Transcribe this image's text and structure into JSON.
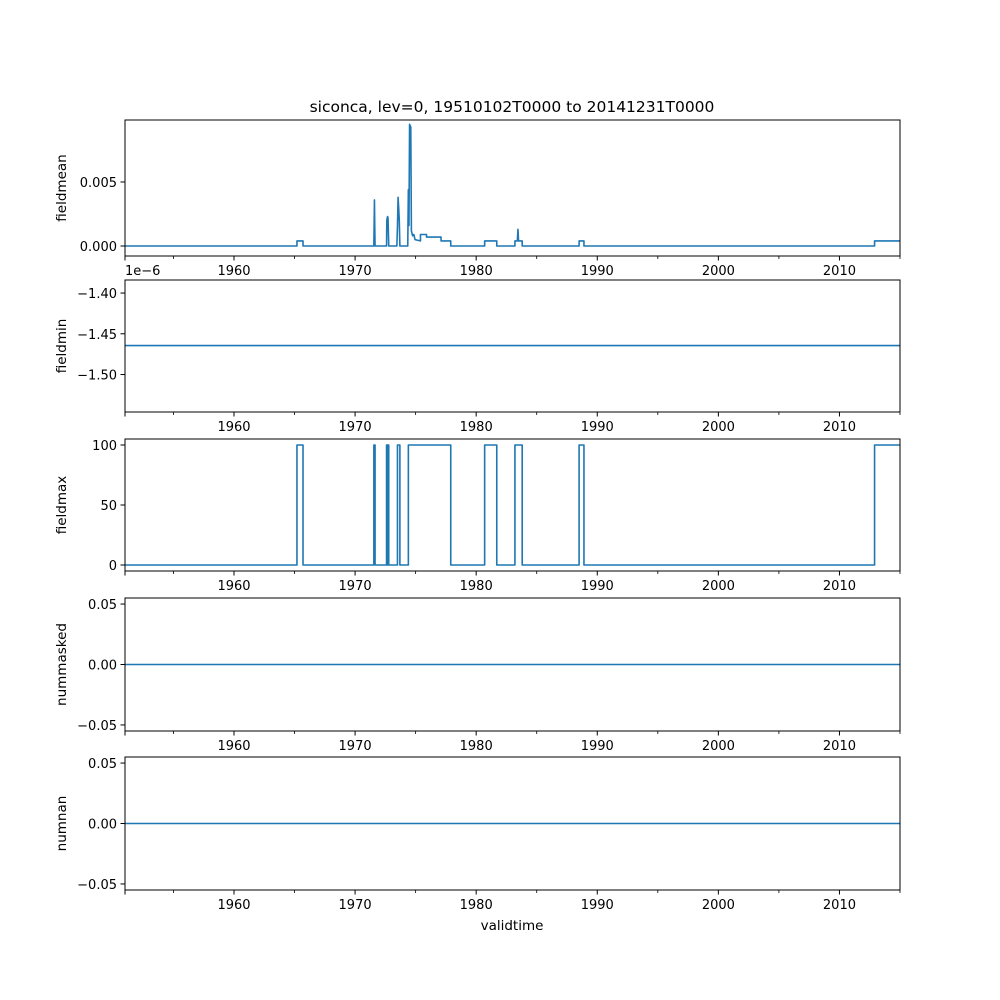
{
  "chart_data": {
    "type": "line",
    "title": "siconca, lev=0, 19510102T0000 to 20141231T0000",
    "xlabel": "validtime",
    "xlim": [
      1951.0,
      2015.0
    ],
    "x_major_ticks": [
      1960,
      1970,
      1980,
      1990,
      2000,
      2010
    ],
    "x_tick_labels": [
      "1960",
      "1970",
      "1980",
      "1990",
      "2000",
      "2010"
    ],
    "x_minor_ticks": [
      1955,
      1965,
      1975,
      1985,
      1995,
      2005,
      2015
    ],
    "line_color": "#1f77b4",
    "panels": [
      {
        "ylabel": "fieldmean",
        "ylim": [
          -0.00078,
          0.00984
        ],
        "yticks": [
          0.0,
          0.005
        ],
        "ytick_labels": [
          "0.000",
          "0.005"
        ],
        "offset_label": "",
        "points": [
          [
            1951,
            0
          ],
          [
            1965.2,
            0
          ],
          [
            1965.2,
            0.0004
          ],
          [
            1965.7,
            0.0004
          ],
          [
            1965.7,
            0
          ],
          [
            1971.55,
            0
          ],
          [
            1971.6,
            0.0036
          ],
          [
            1971.62,
            0.0018
          ],
          [
            1971.65,
            0
          ],
          [
            1972.6,
            0
          ],
          [
            1972.62,
            0.002
          ],
          [
            1972.68,
            0.0023
          ],
          [
            1972.72,
            0.0022
          ],
          [
            1972.78,
            0
          ],
          [
            1973.45,
            0
          ],
          [
            1973.5,
            0.0015
          ],
          [
            1973.55,
            0.0038
          ],
          [
            1973.6,
            0.003
          ],
          [
            1973.65,
            0.002
          ],
          [
            1973.7,
            0
          ],
          [
            1974.35,
            0
          ],
          [
            1974.4,
            0.0044
          ],
          [
            1974.45,
            0.0016
          ],
          [
            1974.5,
            0.0095
          ],
          [
            1974.6,
            0.0093
          ],
          [
            1974.65,
            0.0012
          ],
          [
            1974.75,
            0.0008
          ],
          [
            1974.85,
            0.0009
          ],
          [
            1974.95,
            0.0005
          ],
          [
            1975.4,
            0.0004
          ],
          [
            1975.4,
            0.0009
          ],
          [
            1975.9,
            0.0009
          ],
          [
            1975.9,
            0.0007
          ],
          [
            1977.1,
            0.0007
          ],
          [
            1977.1,
            0.0004
          ],
          [
            1977.9,
            0.0004
          ],
          [
            1977.9,
            0
          ],
          [
            1980.7,
            0
          ],
          [
            1980.7,
            0.0004
          ],
          [
            1981.7,
            0.0004
          ],
          [
            1981.7,
            0
          ],
          [
            1983.2,
            0
          ],
          [
            1983.2,
            0.0004
          ],
          [
            1983.4,
            0.0004
          ],
          [
            1983.45,
            0.0013
          ],
          [
            1983.5,
            0.0004
          ],
          [
            1983.8,
            0.0004
          ],
          [
            1983.8,
            0
          ],
          [
            1988.5,
            0
          ],
          [
            1988.5,
            0.0004
          ],
          [
            1988.9,
            0.0004
          ],
          [
            1988.9,
            0
          ],
          [
            2012.9,
            0
          ],
          [
            2012.9,
            0.0004
          ],
          [
            2015,
            0.0004
          ]
        ]
      },
      {
        "ylabel": "fieldmin",
        "ylim": [
          -1.546,
          -1.384
        ],
        "yticks": [
          -1.4,
          -1.45,
          -1.5
        ],
        "ytick_labels": [
          "−1.40",
          "−1.45",
          "−1.50"
        ],
        "offset_label": "1e−6",
        "points": [
          [
            1951,
            -1.4645
          ],
          [
            2015,
            -1.4645
          ]
        ]
      },
      {
        "ylabel": "fieldmax",
        "ylim": [
          -5,
          105
        ],
        "yticks": [
          0,
          50,
          100
        ],
        "ytick_labels": [
          "0",
          "50",
          "100"
        ],
        "offset_label": "",
        "points": [
          [
            1951,
            0
          ],
          [
            1965.2,
            0
          ],
          [
            1965.2,
            100
          ],
          [
            1965.7,
            100
          ],
          [
            1965.7,
            0
          ],
          [
            1971.55,
            0
          ],
          [
            1971.55,
            100
          ],
          [
            1971.65,
            100
          ],
          [
            1971.65,
            0
          ],
          [
            1972.6,
            0
          ],
          [
            1972.6,
            100
          ],
          [
            1972.65,
            100
          ],
          [
            1972.65,
            0
          ],
          [
            1972.7,
            0
          ],
          [
            1972.7,
            100
          ],
          [
            1972.78,
            100
          ],
          [
            1972.78,
            0
          ],
          [
            1973.5,
            0
          ],
          [
            1973.5,
            100
          ],
          [
            1973.7,
            100
          ],
          [
            1973.7,
            0
          ],
          [
            1974.4,
            0
          ],
          [
            1974.4,
            100
          ],
          [
            1977.9,
            100
          ],
          [
            1977.9,
            0
          ],
          [
            1980.7,
            0
          ],
          [
            1980.7,
            100
          ],
          [
            1981.7,
            100
          ],
          [
            1981.7,
            0
          ],
          [
            1983.2,
            0
          ],
          [
            1983.2,
            100
          ],
          [
            1983.8,
            100
          ],
          [
            1983.8,
            0
          ],
          [
            1988.5,
            0
          ],
          [
            1988.5,
            100
          ],
          [
            1988.9,
            100
          ],
          [
            1988.9,
            0
          ],
          [
            2012.9,
            0
          ],
          [
            2012.9,
            100
          ],
          [
            2015,
            100
          ]
        ]
      },
      {
        "ylabel": "nummasked",
        "ylim": [
          -0.055,
          0.055
        ],
        "yticks": [
          0.05,
          0.0,
          -0.05
        ],
        "ytick_labels": [
          "0.05",
          "0.00",
          "−0.05"
        ],
        "offset_label": "",
        "points": [
          [
            1951,
            0
          ],
          [
            2015,
            0
          ]
        ]
      },
      {
        "ylabel": "numnan",
        "ylim": [
          -0.055,
          0.055
        ],
        "yticks": [
          0.05,
          0.0,
          -0.05
        ],
        "ytick_labels": [
          "0.05",
          "0.00",
          "−0.05"
        ],
        "offset_label": "",
        "points": [
          [
            1951,
            0
          ],
          [
            2015,
            0
          ]
        ]
      }
    ]
  }
}
